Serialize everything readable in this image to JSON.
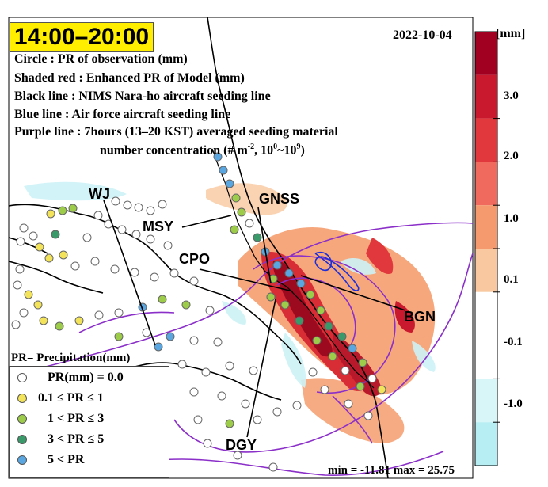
{
  "panel": {
    "time": "14:00–20:00",
    "date": "2022-10-04"
  },
  "description": {
    "line1": "Circle : PR of observation (mm)",
    "line2": "Shaded red : Enhanced PR of Model (mm)",
    "line3": "Black line : NIMS Nara-ho aircraft seeding line",
    "line4": "Blue line : Air force aircraft seeding line",
    "line5": "Purple line : 7hours (13–20 KST) averaged seeding material",
    "line6_text": "number concentration (# m",
    "line6_sup1": "-2",
    "line6_mid": ", 10",
    "line6_sup2": "0",
    "line6_tilde": "~10",
    "line6_sup3": "9",
    "line6_end": ")"
  },
  "sites": {
    "wj": "WJ",
    "msy": "MSY",
    "gnss": "GNSS",
    "cpo": "CPO",
    "bgn": "BGN",
    "dgy": "DGY"
  },
  "pr_caption": "PR= Precipitation(mm)",
  "legend": {
    "items": [
      {
        "label": "PR(mm) = 0.0",
        "color": "#ffffff"
      },
      {
        "label": "0.1 ≤  PR  ≤ 1",
        "color": "#f2e35a"
      },
      {
        "label": "1 <  PR  ≤ 3",
        "color": "#9ccc4a"
      },
      {
        "label": "3 <  PR  ≤ 5",
        "color": "#3a9a6a"
      },
      {
        "label": "5 <  PR",
        "color": "#5aa6e0"
      }
    ]
  },
  "stats": {
    "text": "min = -11.81 max = 25.75"
  },
  "colorbar": {
    "title": "[mm]",
    "ticks": [
      "3.0",
      "2.0",
      "1.0",
      "0.1",
      "-0.1",
      "-1.0"
    ],
    "colors": [
      "#a10020",
      "#c9192e",
      "#e0383c",
      "#f06a5e",
      "#f59a6e",
      "#f9c8a0",
      "#ffffff",
      "#ffffff",
      "#d8f5f8",
      "#b6eef3"
    ]
  }
}
